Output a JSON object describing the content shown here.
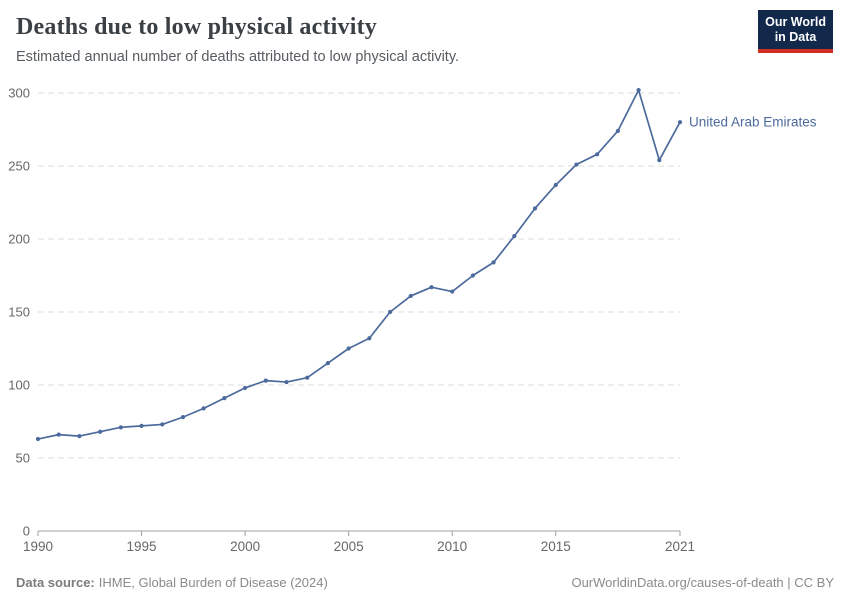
{
  "header": {
    "title": "Deaths due to low physical activity",
    "subtitle": "Estimated annual number of deaths attributed to low physical activity."
  },
  "logo": {
    "line1": "Our World",
    "line2": "in Data",
    "bg_color": "#12294b",
    "accent_color": "#cf2f24"
  },
  "chart_data": {
    "type": "line",
    "title": "Deaths due to low physical activity",
    "xlabel": "",
    "ylabel": "",
    "x": [
      1990,
      1991,
      1992,
      1993,
      1994,
      1995,
      1996,
      1997,
      1998,
      1999,
      2000,
      2001,
      2002,
      2003,
      2004,
      2005,
      2006,
      2007,
      2008,
      2009,
      2010,
      2011,
      2012,
      2013,
      2014,
      2015,
      2016,
      2017,
      2018,
      2019,
      2020,
      2021
    ],
    "series": [
      {
        "name": "United Arab Emirates",
        "color": "#4C6A9C",
        "values": [
          63,
          66,
          65,
          68,
          71,
          72,
          73,
          78,
          84,
          91,
          98,
          103,
          102,
          105,
          115,
          125,
          132,
          150,
          161,
          167,
          164,
          175,
          184,
          202,
          221,
          237,
          251,
          258,
          274,
          302,
          254,
          280
        ]
      }
    ],
    "xlim": [
      1990,
      2021
    ],
    "ylim": [
      0,
      300
    ],
    "yticks": [
      0,
      50,
      100,
      150,
      200,
      250,
      300
    ],
    "xticks": [
      1990,
      1995,
      2000,
      2005,
      2010,
      2015,
      2021
    ],
    "grid": "horizontal-dashed",
    "legend_position": "end-of-line-label"
  },
  "footer": {
    "source_label": "Data source:",
    "source_value": "IHME, Global Burden of Disease (2024)",
    "credit": "OurWorldinData.org/causes-of-death | CC BY"
  },
  "colors": {
    "line": "#4C6A9C",
    "grid": "#dedede",
    "axis": "#a0a0a0",
    "tick_text": "#676767",
    "entity_label": "#4C6A9C"
  }
}
